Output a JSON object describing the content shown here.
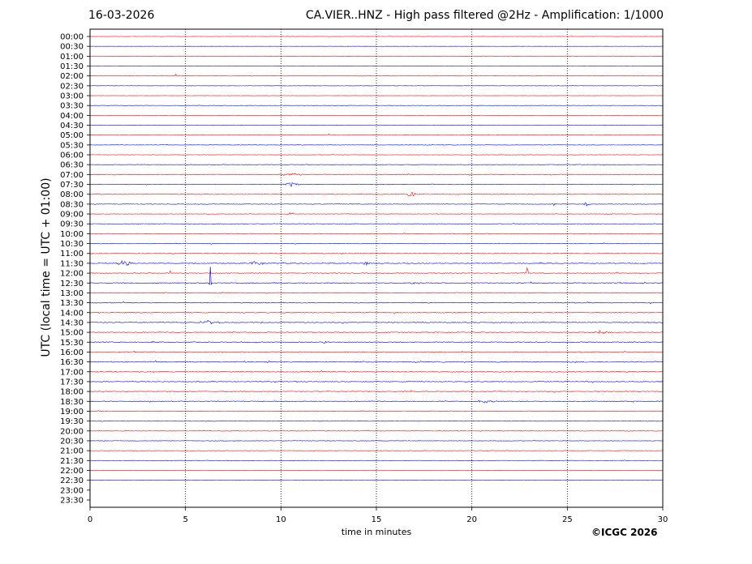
{
  "header": {
    "date": "16-03-2026",
    "title": "CA.VIER..HNZ - High pass filtered @2Hz - Amplification: 1/1000"
  },
  "footer": {
    "copyright": "©ICGC 2026"
  },
  "colors": {
    "trace_red": "#ff0000",
    "trace_blue": "#0000ff",
    "grid": "#000000",
    "background": "#ffffff"
  },
  "chart_data": {
    "type": "line",
    "title": "CA.VIER..HNZ - High pass filtered @2Hz - Amplification: 1/1000",
    "xlabel": "time in minutes",
    "ylabel": "UTC (local time = UTC + 01:00)",
    "xlim": [
      0,
      30
    ],
    "x_ticks": [
      0,
      5,
      10,
      15,
      20,
      25,
      30
    ],
    "x_gridlines": [
      5,
      10,
      15,
      20,
      25
    ],
    "grid": "vertical dotted",
    "row_labels": [
      "00:00",
      "00:30",
      "01:00",
      "01:30",
      "02:00",
      "02:30",
      "03:00",
      "03:30",
      "04:00",
      "04:30",
      "05:00",
      "05:30",
      "06:00",
      "06:30",
      "07:00",
      "07:30",
      "08:00",
      "08:30",
      "09:00",
      "09:30",
      "10:00",
      "10:30",
      "11:00",
      "11:30",
      "12:00",
      "12:30",
      "13:00",
      "13:30",
      "14:00",
      "14:30",
      "15:00",
      "15:30",
      "16:00",
      "16:30",
      "17:00",
      "17:30",
      "18:00",
      "18:30",
      "19:00",
      "19:30",
      "20:00",
      "20:30",
      "21:00",
      "21:30",
      "22:00",
      "22:30",
      "23:00",
      "23:30"
    ],
    "row_color_pattern": [
      "red",
      "blue"
    ],
    "trace_end_minutes": [
      30,
      30,
      30,
      30,
      30,
      30,
      30,
      30,
      30,
      30,
      30,
      30,
      30,
      30,
      30,
      30,
      30,
      30,
      30,
      30,
      30,
      30,
      30,
      30,
      30,
      30,
      30,
      30,
      30,
      30,
      30,
      30,
      30,
      30,
      30,
      30,
      30,
      30,
      30,
      30,
      30,
      30,
      30,
      30,
      30,
      30,
      0,
      0
    ],
    "noise_level": [
      0.25,
      0.15,
      0.35,
      0.3,
      0.35,
      0.25,
      0.2,
      0.3,
      0.3,
      0.2,
      0.3,
      0.35,
      0.35,
      0.45,
      0.6,
      0.55,
      0.55,
      0.5,
      0.4,
      0.5,
      0.55,
      0.55,
      0.6,
      0.8,
      0.7,
      0.8,
      0.7,
      0.75,
      0.8,
      0.75,
      0.75,
      0.8,
      0.85,
      0.9,
      0.85,
      0.75,
      0.75,
      0.75,
      0.6,
      0.5,
      0.5,
      0.45,
      0.4,
      0.35,
      0.2,
      0.15,
      0,
      0
    ],
    "events": [
      {
        "row": 4,
        "minute": 3.8,
        "amplitude": 0.5,
        "duration": 0.1
      },
      {
        "row": 4,
        "minute": 4.5,
        "amplitude": 0.7,
        "duration": 0.1
      },
      {
        "row": 10,
        "minute": 12.5,
        "amplitude": 0.5,
        "duration": 0.1
      },
      {
        "row": 14,
        "minute": 10.5,
        "amplitude": 0.6,
        "duration": 1.5
      },
      {
        "row": 15,
        "minute": 10.5,
        "amplitude": 0.7,
        "duration": 1.0
      },
      {
        "row": 16,
        "minute": 3.0,
        "amplitude": 0.8,
        "duration": 0.1
      },
      {
        "row": 16,
        "minute": 16.8,
        "amplitude": 1.0,
        "duration": 0.6
      },
      {
        "row": 17,
        "minute": 24.3,
        "amplitude": 1.0,
        "duration": 0.1
      },
      {
        "row": 17,
        "minute": 26.0,
        "amplitude": 0.6,
        "duration": 0.5
      },
      {
        "row": 18,
        "minute": 10.5,
        "amplitude": 0.6,
        "duration": 0.6
      },
      {
        "row": 23,
        "minute": 1.8,
        "amplitude": 0.9,
        "duration": 1.2
      },
      {
        "row": 23,
        "minute": 8.7,
        "amplitude": 0.8,
        "duration": 1.0
      },
      {
        "row": 23,
        "minute": 14.5,
        "amplitude": 0.5,
        "duration": 0.6
      },
      {
        "row": 23,
        "minute": 22.9,
        "amplitude": 1.0,
        "duration": 0.1
      },
      {
        "row": 24,
        "minute": 4.2,
        "amplitude": 1.5,
        "duration": 0.1
      },
      {
        "row": 24,
        "minute": 22.9,
        "amplitude": 2.5,
        "duration": 0.1
      },
      {
        "row": 24,
        "minute": 27.6,
        "amplitude": 1.2,
        "duration": 0.1
      },
      {
        "row": 25,
        "minute": 6.3,
        "amplitude": 6.0,
        "duration": 0.1
      },
      {
        "row": 25,
        "minute": 17.2,
        "amplitude": 0.6,
        "duration": 1.0
      },
      {
        "row": 29,
        "minute": 6.3,
        "amplitude": 0.5,
        "duration": 1.5
      },
      {
        "row": 30,
        "minute": 26.8,
        "amplitude": 0.6,
        "duration": 1.0
      },
      {
        "row": 31,
        "minute": 12.3,
        "amplitude": 0.5,
        "duration": 0.3
      },
      {
        "row": 37,
        "minute": 20.8,
        "amplitude": 0.5,
        "duration": 1.2
      }
    ]
  }
}
